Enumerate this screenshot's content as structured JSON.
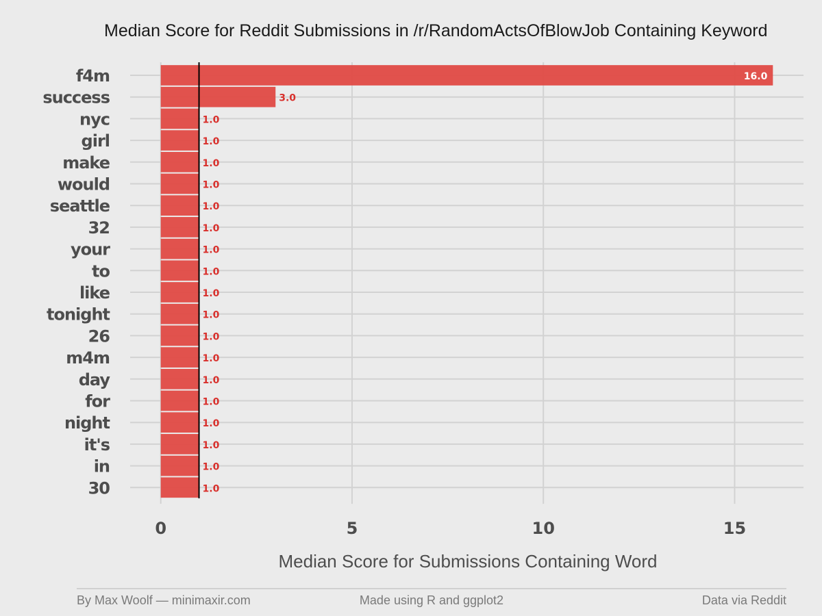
{
  "chart_data": {
    "type": "bar",
    "orientation": "horizontal",
    "title": "Median Score for Reddit Submissions in /r/RandomActsOfBlowJob Containing Keyword",
    "xlabel": "Median Score for Submissions Containing Word",
    "ylabel": "",
    "categories": [
      "f4m",
      "success",
      "nyc",
      "girl",
      "make",
      "would",
      "seattle",
      "32",
      "your",
      "to",
      "like",
      "tonight",
      "26",
      "m4m",
      "day",
      "for",
      "night",
      "it's",
      "in",
      "30"
    ],
    "values": [
      16.0,
      3.0,
      1.0,
      1.0,
      1.0,
      1.0,
      1.0,
      1.0,
      1.0,
      1.0,
      1.0,
      1.0,
      1.0,
      1.0,
      1.0,
      1.0,
      1.0,
      1.0,
      1.0,
      1.0
    ],
    "value_labels": [
      "16.0",
      "3.0",
      "1.0",
      "1.0",
      "1.0",
      "1.0",
      "1.0",
      "1.0",
      "1.0",
      "1.0",
      "1.0",
      "1.0",
      "1.0",
      "1.0",
      "1.0",
      "1.0",
      "1.0",
      "1.0",
      "1.0",
      "1.0"
    ],
    "xlim": [
      -0.8,
      16.8
    ],
    "xticks": [
      0,
      5,
      10,
      15
    ],
    "xtick_labels": [
      "0",
      "5",
      "10",
      "15"
    ],
    "reference_line": 1.0,
    "grid": true,
    "colors": {
      "bar": "#e04a45",
      "bar_label": "#d8302c",
      "inner_label": "#ffffff",
      "background": "#ebebeb",
      "grid": "#d2d2d2",
      "reference": "#000000"
    }
  },
  "footer": {
    "left": "By Max Woolf — minimaxir.com",
    "center": "Made using R and ggplot2",
    "right": "Data via Reddit"
  }
}
